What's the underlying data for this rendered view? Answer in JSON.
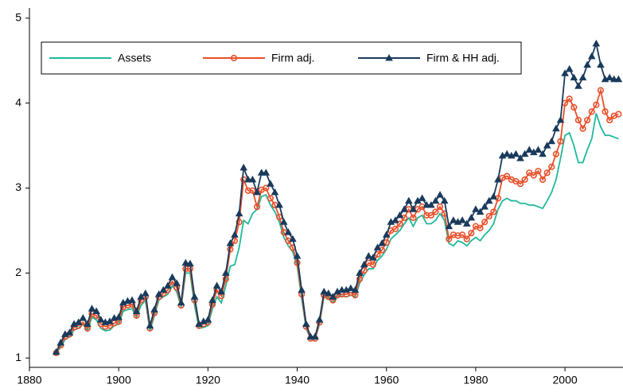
{
  "chart_data": {
    "type": "line",
    "x": [
      1886,
      1887,
      1888,
      1889,
      1890,
      1891,
      1892,
      1893,
      1894,
      1895,
      1896,
      1897,
      1898,
      1899,
      1900,
      1901,
      1902,
      1903,
      1904,
      1905,
      1906,
      1907,
      1908,
      1909,
      1910,
      1911,
      1912,
      1913,
      1914,
      1915,
      1916,
      1917,
      1918,
      1919,
      1920,
      1921,
      1922,
      1923,
      1924,
      1925,
      1926,
      1927,
      1928,
      1929,
      1930,
      1931,
      1932,
      1933,
      1934,
      1935,
      1936,
      1937,
      1938,
      1939,
      1940,
      1941,
      1942,
      1943,
      1944,
      1945,
      1946,
      1947,
      1948,
      1949,
      1950,
      1951,
      1952,
      1953,
      1954,
      1955,
      1956,
      1957,
      1958,
      1959,
      1960,
      1961,
      1962,
      1963,
      1964,
      1965,
      1966,
      1967,
      1968,
      1969,
      1970,
      1971,
      1972,
      1973,
      1974,
      1975,
      1976,
      1977,
      1978,
      1979,
      1980,
      1981,
      1982,
      1983,
      1984,
      1985,
      1986,
      1987,
      1988,
      1989,
      1990,
      1991,
      1992,
      1993,
      1994,
      1995,
      1996,
      1997,
      1998,
      1999,
      2000,
      2001,
      2002,
      2003,
      2004,
      2005,
      2006,
      2007,
      2008,
      2009,
      2010,
      2011,
      2012
    ],
    "series": [
      {
        "name": "Assets",
        "color": "#1fb89a",
        "marker": "none",
        "values": [
          1.05,
          1.13,
          1.22,
          1.25,
          1.33,
          1.35,
          1.4,
          1.32,
          1.48,
          1.45,
          1.35,
          1.32,
          1.33,
          1.38,
          1.4,
          1.55,
          1.57,
          1.58,
          1.48,
          1.62,
          1.68,
          1.32,
          1.5,
          1.68,
          1.72,
          1.75,
          1.85,
          1.78,
          1.6,
          2.0,
          2.0,
          1.62,
          1.35,
          1.36,
          1.38,
          1.58,
          1.72,
          1.65,
          1.85,
          2.08,
          2.1,
          2.3,
          2.62,
          2.58,
          2.7,
          2.75,
          2.9,
          2.92,
          2.8,
          2.72,
          2.6,
          2.42,
          2.32,
          2.25,
          2.08,
          1.7,
          1.35,
          1.22,
          1.22,
          1.4,
          1.72,
          1.7,
          1.65,
          1.72,
          1.73,
          1.72,
          1.74,
          1.72,
          1.88,
          1.98,
          2.05,
          2.05,
          2.15,
          2.2,
          2.28,
          2.4,
          2.45,
          2.5,
          2.58,
          2.65,
          2.55,
          2.65,
          2.68,
          2.58,
          2.58,
          2.62,
          2.7,
          2.62,
          2.35,
          2.32,
          2.38,
          2.36,
          2.32,
          2.38,
          2.42,
          2.38,
          2.45,
          2.5,
          2.58,
          2.75,
          2.85,
          2.88,
          2.85,
          2.85,
          2.82,
          2.82,
          2.8,
          2.8,
          2.78,
          2.76,
          2.85,
          2.95,
          3.1,
          3.35,
          3.62,
          3.65,
          3.5,
          3.3,
          3.3,
          3.45,
          3.58,
          3.88,
          3.72,
          3.62,
          3.62,
          3.6,
          3.58
        ]
      },
      {
        "name": "Firm adj.",
        "color": "#e8502a",
        "marker": "circle",
        "values": [
          1.06,
          1.15,
          1.25,
          1.28,
          1.36,
          1.38,
          1.42,
          1.35,
          1.52,
          1.5,
          1.4,
          1.37,
          1.38,
          1.41,
          1.43,
          1.6,
          1.62,
          1.63,
          1.5,
          1.68,
          1.72,
          1.35,
          1.53,
          1.72,
          1.76,
          1.8,
          1.9,
          1.83,
          1.62,
          2.05,
          2.05,
          1.68,
          1.38,
          1.4,
          1.42,
          1.63,
          1.8,
          1.73,
          1.93,
          2.28,
          2.38,
          2.6,
          3.1,
          2.97,
          2.97,
          2.78,
          2.98,
          3.0,
          2.88,
          2.8,
          2.66,
          2.48,
          2.38,
          2.3,
          2.12,
          1.75,
          1.37,
          1.23,
          1.23,
          1.42,
          1.74,
          1.72,
          1.68,
          1.74,
          1.75,
          1.75,
          1.77,
          1.74,
          1.93,
          2.03,
          2.12,
          2.1,
          2.22,
          2.27,
          2.36,
          2.5,
          2.52,
          2.58,
          2.65,
          2.75,
          2.65,
          2.75,
          2.78,
          2.68,
          2.68,
          2.72,
          2.78,
          2.7,
          2.4,
          2.45,
          2.44,
          2.45,
          2.4,
          2.47,
          2.55,
          2.53,
          2.6,
          2.67,
          2.72,
          2.88,
          3.12,
          3.14,
          3.1,
          3.08,
          3.05,
          3.1,
          3.18,
          3.15,
          3.2,
          3.1,
          3.18,
          3.25,
          3.4,
          3.55,
          4.0,
          4.05,
          3.95,
          3.8,
          3.7,
          3.8,
          3.9,
          3.98,
          4.15,
          3.9,
          3.8,
          3.85,
          3.87
        ]
      },
      {
        "name": "Firm & HH adj.",
        "color": "#1a3a5c",
        "marker": "triangle",
        "values": [
          1.07,
          1.18,
          1.28,
          1.3,
          1.4,
          1.42,
          1.47,
          1.4,
          1.58,
          1.55,
          1.45,
          1.42,
          1.43,
          1.47,
          1.48,
          1.65,
          1.67,
          1.68,
          1.55,
          1.72,
          1.76,
          1.38,
          1.57,
          1.75,
          1.8,
          1.85,
          1.95,
          1.88,
          1.65,
          2.12,
          2.11,
          1.72,
          1.4,
          1.43,
          1.45,
          1.68,
          1.85,
          1.78,
          2.0,
          2.35,
          2.45,
          2.7,
          3.24,
          3.1,
          3.1,
          2.95,
          3.18,
          3.18,
          3.05,
          2.95,
          2.8,
          2.6,
          2.48,
          2.4,
          2.2,
          1.8,
          1.4,
          1.25,
          1.25,
          1.45,
          1.78,
          1.76,
          1.72,
          1.78,
          1.8,
          1.8,
          1.82,
          1.8,
          2.0,
          2.1,
          2.2,
          2.18,
          2.3,
          2.35,
          2.45,
          2.6,
          2.62,
          2.68,
          2.75,
          2.85,
          2.75,
          2.85,
          2.88,
          2.8,
          2.8,
          2.85,
          2.92,
          2.85,
          2.55,
          2.62,
          2.6,
          2.62,
          2.58,
          2.65,
          2.75,
          2.72,
          2.78,
          2.85,
          2.9,
          3.1,
          3.38,
          3.4,
          3.38,
          3.4,
          3.35,
          3.4,
          3.45,
          3.42,
          3.45,
          3.4,
          3.5,
          3.55,
          3.7,
          3.8,
          4.35,
          4.4,
          4.3,
          4.2,
          4.3,
          4.45,
          4.55,
          4.7,
          4.45,
          4.28,
          4.3,
          4.28,
          4.28
        ]
      }
    ],
    "xlim": [
      1880,
      2013
    ],
    "xticks": [
      1880,
      1900,
      1920,
      1940,
      1960,
      1980,
      2000
    ],
    "ylim": [
      0.89,
      5.12
    ],
    "yticks": [
      1,
      2,
      3,
      4,
      5
    ],
    "grid": false,
    "legend": "top"
  }
}
